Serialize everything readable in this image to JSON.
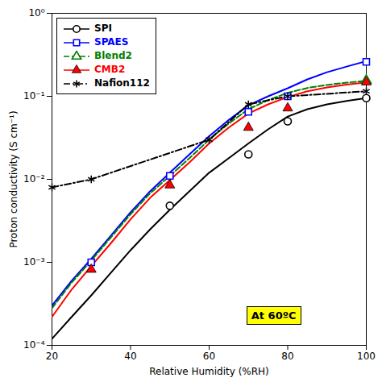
{
  "chart_data": {
    "type": "line",
    "xlabel": "Relative Humidity (%RH)",
    "ylabel": "Proton conductivity (S cm⁻¹)",
    "annotation": "At 60ºC",
    "xlim": [
      20,
      100
    ],
    "ylim": [
      0.0001,
      1.0
    ],
    "xticks": [
      20,
      40,
      60,
      80,
      100
    ],
    "yticks": [
      {
        "value": 0.0001,
        "label": "10⁻⁴"
      },
      {
        "value": 0.001,
        "label": "10⁻³"
      },
      {
        "value": 0.01,
        "label": "10⁻²"
      },
      {
        "value": 0.1,
        "label": "10⁻¹"
      },
      {
        "value": 1.0,
        "label": "10⁰"
      }
    ],
    "log": "y",
    "legend": "top-left",
    "series": [
      {
        "name": "SPI",
        "color": "#000000",
        "line_style": "solid",
        "marker": "open circle",
        "x": [
          20,
          25,
          30,
          35,
          40,
          45,
          50,
          55,
          60,
          65,
          70,
          75,
          80,
          85,
          90,
          95,
          100
        ],
        "values": [
          0.00012,
          0.00022,
          0.0004,
          0.00075,
          0.0014,
          0.0025,
          0.0043,
          0.0072,
          0.012,
          0.018,
          0.027,
          0.04,
          0.057,
          0.07,
          0.08,
          0.088,
          0.095
        ],
        "points_x": [
          50,
          70,
          80,
          100
        ],
        "points_values": [
          0.0048,
          0.02,
          0.05,
          0.095
        ]
      },
      {
        "name": "SPAES",
        "color": "#0000FF",
        "line_style": "solid",
        "marker": "open square",
        "x": [
          20,
          25,
          30,
          35,
          40,
          45,
          50,
          55,
          60,
          65,
          70,
          75,
          80,
          85,
          90,
          95,
          100
        ],
        "values": [
          0.0003,
          0.0006,
          0.0011,
          0.0021,
          0.004,
          0.0072,
          0.012,
          0.02,
          0.033,
          0.052,
          0.078,
          0.1,
          0.125,
          0.16,
          0.195,
          0.228,
          0.265
        ],
        "points_x": [
          30,
          50,
          70,
          80,
          100
        ],
        "points_values": [
          0.001,
          0.011,
          0.065,
          0.1,
          0.26
        ]
      },
      {
        "name": "Blend2",
        "color": "#008000",
        "line_style": "dashed",
        "marker": "open triangle",
        "x": [
          20,
          25,
          30,
          35,
          40,
          45,
          50,
          55,
          60,
          65,
          70,
          75,
          80,
          85,
          90,
          95,
          100
        ],
        "values": [
          0.00028,
          0.00057,
          0.00105,
          0.002,
          0.0038,
          0.0068,
          0.011,
          0.018,
          0.03,
          0.047,
          0.07,
          0.09,
          0.11,
          0.126,
          0.137,
          0.146,
          0.154
        ],
        "points_x": [
          100
        ],
        "points_values": [
          0.155
        ]
      },
      {
        "name": "CMB2",
        "color": "#FF0000",
        "line_style": "solid",
        "marker": "filled triangle",
        "x": [
          20,
          25,
          30,
          35,
          40,
          45,
          50,
          55,
          60,
          65,
          70,
          75,
          80,
          85,
          90,
          95,
          100
        ],
        "values": [
          0.00022,
          0.00047,
          0.0009,
          0.0017,
          0.0033,
          0.006,
          0.0098,
          0.016,
          0.027,
          0.042,
          0.062,
          0.08,
          0.098,
          0.115,
          0.128,
          0.138,
          0.147
        ],
        "points_x": [
          30,
          50,
          70,
          80,
          100
        ],
        "points_values": [
          0.00082,
          0.0085,
          0.042,
          0.072,
          0.148
        ]
      },
      {
        "name": "Nafion112",
        "color": "#000000",
        "line_style": "dashdot",
        "marker": "asterisk",
        "x": [
          20,
          30,
          60,
          70,
          80,
          100
        ],
        "values": [
          0.008,
          0.01,
          0.03,
          0.08,
          0.1,
          0.115
        ]
      }
    ]
  }
}
